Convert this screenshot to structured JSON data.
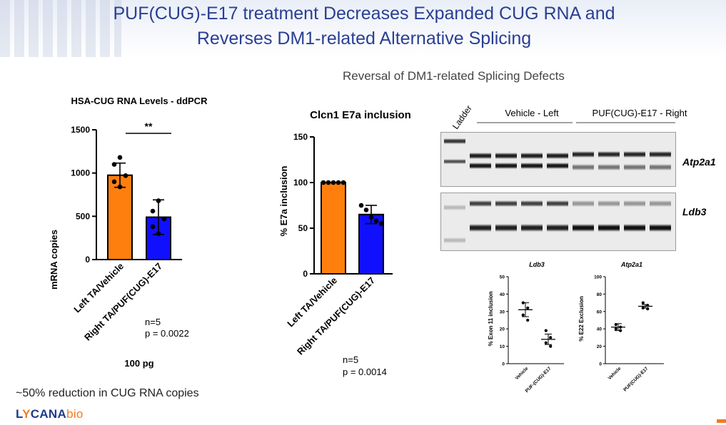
{
  "header": {
    "title_line1": "PUF(CUG)-E17 treatment Decreases Expanded CUG RNA and",
    "title_line2": "Reverses DM1-related Alternative Splicing"
  },
  "subtitle": "Reversal of DM1-related Splicing Defects",
  "footnote": "~50% reduction in CUG RNA copies",
  "logo": {
    "prefix": "L",
    "mark": "Y",
    "main": "CANA",
    "suffix": "bio"
  },
  "colors": {
    "vehicle": "#ff7f0e",
    "treated": "#1010ff",
    "title": "#2a3f93",
    "accent": "#f47b20"
  },
  "chart_data": [
    {
      "type": "bar",
      "title": "HSA-CUG RNA Levels - ddPCR",
      "ylabel": "mRNA copies",
      "xlabel": "100 pg",
      "categories": [
        "Left TA/Vehicle",
        "Right TA/PUF(CUG)-E17"
      ],
      "values": [
        975,
        490
      ],
      "errors": [
        140,
        200
      ],
      "points": [
        [
          1180,
          1100,
          970,
          900,
          840
        ],
        [
          680,
          560,
          470,
          380,
          300
        ]
      ],
      "ylim": [
        0,
        1500
      ],
      "yticks": [
        0,
        500,
        1000,
        1500
      ],
      "significance": "**",
      "stats": {
        "n": "n=5",
        "p": "p = 0.0022"
      }
    },
    {
      "type": "bar",
      "title": "Clcn1 E7a inclusion",
      "ylabel": "% E7a inclusion",
      "categories": [
        "Left TA/Vehicle",
        "Right TA/PUF(CUG)-E17"
      ],
      "values": [
        100,
        65
      ],
      "errors": [
        0,
        10
      ],
      "points": [
        [
          100,
          100,
          100,
          100,
          100
        ],
        [
          75,
          70,
          62,
          58,
          55
        ]
      ],
      "ylim": [
        0,
        150
      ],
      "yticks": [
        0,
        50,
        100,
        150
      ],
      "stats": {
        "n": "n=5",
        "p": "p = 0.0014"
      }
    },
    {
      "type": "scatter",
      "title": "Ldb3",
      "ylabel": "% Exon 11 inclusion",
      "categories": [
        "Vehicle",
        "PUF-(CUG)-E17"
      ],
      "points": [
        [
          35,
          32,
          28,
          25
        ],
        [
          19,
          15,
          12,
          10
        ]
      ],
      "means": [
        31,
        14
      ],
      "errors": [
        4,
        3
      ],
      "ylim": [
        0,
        50
      ],
      "yticks": [
        0,
        10,
        20,
        30,
        40,
        50
      ]
    },
    {
      "type": "scatter",
      "title": "Atp2a1",
      "ylabel": "% E22 Exclusion",
      "categories": [
        "Vehicle",
        "PUF(CUG)-E17"
      ],
      "points": [
        [
          45,
          42,
          40,
          38
        ],
        [
          70,
          67,
          64,
          63
        ]
      ],
      "means": [
        42,
        66
      ],
      "errors": [
        4,
        2
      ],
      "ylim": [
        0,
        100
      ],
      "yticks": [
        0,
        20,
        40,
        60,
        80,
        100
      ]
    }
  ],
  "gel": {
    "ladder_label": "Ladder",
    "group1_label": "Vehicle - Left",
    "group2_label": "PUF(CUG)-E17 - Right",
    "gene1": "Atp2a1",
    "gene2": "Ldb3"
  }
}
